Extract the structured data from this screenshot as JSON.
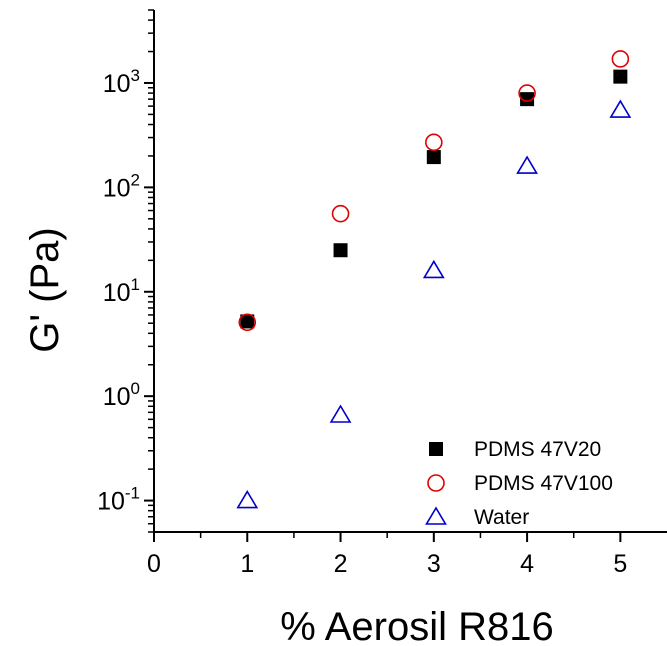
{
  "chart_data": {
    "type": "scatter",
    "xlabel": "% Aerosil R816",
    "ylabel": "G' (Pa)",
    "title": "",
    "xlim": [
      0,
      5.5
    ],
    "ylim": [
      0.05,
      5000
    ],
    "yscale": "log",
    "x_ticks": [
      {
        "value": 0,
        "label": "0"
      },
      {
        "value": 1,
        "label": "1"
      },
      {
        "value": 2,
        "label": "2"
      },
      {
        "value": 3,
        "label": "3"
      },
      {
        "value": 4,
        "label": "4"
      },
      {
        "value": 5,
        "label": "5"
      }
    ],
    "y_ticks": [
      {
        "value": 0.1,
        "base": "10",
        "exp": "-1"
      },
      {
        "value": 1,
        "base": "10",
        "exp": "0"
      },
      {
        "value": 10,
        "base": "10",
        "exp": "1"
      },
      {
        "value": 100,
        "base": "10",
        "exp": "2"
      },
      {
        "value": 1000,
        "base": "10",
        "exp": "3"
      }
    ],
    "legend_position": "bottom-right",
    "grid": false,
    "series": [
      {
        "name": "PDMS 47V20",
        "marker": "filled-square",
        "color": "#000000",
        "x": [
          1,
          2,
          3,
          4,
          5
        ],
        "y": [
          5.2,
          25,
          195,
          700,
          1150
        ]
      },
      {
        "name": "PDMS 47V100",
        "marker": "open-circle",
        "color": "#e00000",
        "x": [
          1,
          2,
          3,
          4,
          5
        ],
        "y": [
          5.1,
          56,
          270,
          800,
          1700
        ]
      },
      {
        "name": "Water",
        "marker": "open-triangle",
        "color": "#0000cc",
        "x": [
          1,
          2,
          3,
          4,
          5
        ],
        "y": [
          0.1,
          0.66,
          16,
          160,
          550
        ]
      }
    ]
  }
}
